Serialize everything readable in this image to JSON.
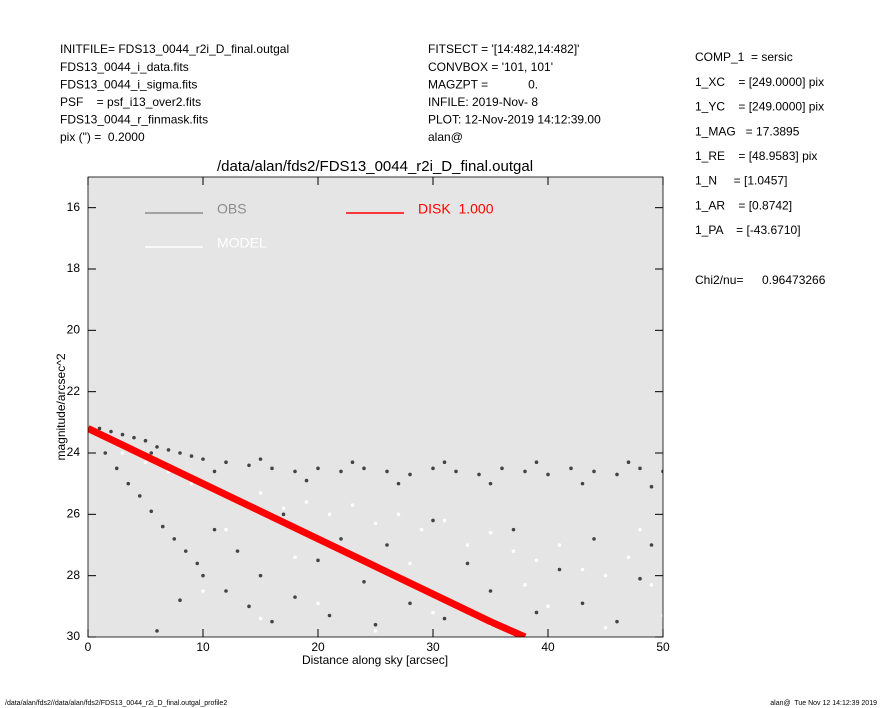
{
  "header": {
    "left": [
      "INITFILE= FDS13_0044_r2i_D_final.outgal",
      "FDS13_0044_i_data.fits",
      "FDS13_0044_i_sigma.fits",
      "PSF    = psf_i13_over2.fits",
      "FDS13_0044_r_finmask.fits",
      "pix (\") =  0.2000"
    ],
    "middle": [
      "FITSECT = '[14:482,14:482]'",
      "CONVBOX = '101, 101'",
      "MAGZPT =            0.",
      "INFILE: 2019-Nov- 8",
      "PLOT: 12-Nov-2019 14:12:39.00",
      "alan@"
    ],
    "right": [
      "COMP_1  = sersic",
      "1_XC    = [249.0000] pix",
      "1_YC    = [249.0000] pix",
      "1_MAG   = 17.3895",
      "1_RE    = [48.9583] pix",
      "1_N     = [1.0457]",
      "1_AR    = [0.8742]",
      "1_PA    = [-43.6710]"
    ],
    "chi2_label": "Chi2/nu=",
    "chi2_value": "0.96473266"
  },
  "footer": {
    "left": "/data/alan/fds2//data/alan/fds2/FDS13_0044_r2i_D_final.outgal_profile2",
    "right": "alan@  Tue Nov 12 14:12:39 2019"
  },
  "chart_data": {
    "type": "scatter",
    "title": "/data/alan/fds2/FDS13_0044_r2i_D_final.outgal",
    "x_label": "Distance along sky [arcsec]",
    "y_label": "magnitude/arcsec^2",
    "xlim": [
      0,
      50
    ],
    "ylim": [
      15,
      30
    ],
    "y_inverted": true,
    "xticks": [
      0,
      10,
      20,
      30,
      40,
      50
    ],
    "yticks": [
      16,
      18,
      20,
      22,
      24,
      26,
      28,
      30
    ],
    "background": "#e5e5e5",
    "series": [
      {
        "name": "OBS",
        "color": "#444444",
        "legend_color": "#8c8c8c",
        "x": [
          1,
          2,
          3,
          4,
          5,
          6,
          7,
          8,
          9,
          10,
          12,
          14,
          16,
          18,
          20,
          22,
          24,
          26,
          28,
          30,
          32,
          34,
          36,
          38,
          40,
          42,
          44,
          46,
          48,
          50,
          2.5,
          5.5,
          11,
          15,
          19,
          23,
          27,
          31,
          35,
          39,
          43,
          47,
          49,
          1.5,
          2.5,
          3.5,
          4.5,
          5.5,
          6.5,
          7.5,
          8.5,
          9.5,
          10,
          11,
          12,
          13,
          14,
          15,
          16,
          17,
          18,
          20,
          21,
          22,
          24,
          25,
          26,
          28,
          30,
          31,
          33,
          35,
          37,
          39,
          41,
          43,
          44,
          46,
          48,
          49,
          6,
          8
        ],
        "values": [
          23.2,
          23.3,
          23.4,
          23.5,
          23.6,
          23.8,
          23.9,
          24.0,
          24.1,
          24.2,
          24.3,
          24.4,
          24.5,
          24.6,
          24.5,
          24.6,
          24.5,
          24.6,
          24.7,
          24.5,
          24.6,
          24.7,
          24.5,
          24.6,
          24.7,
          24.5,
          24.6,
          24.7,
          24.5,
          24.6,
          23.6,
          24.0,
          24.6,
          24.2,
          24.9,
          24.3,
          25.0,
          24.3,
          25.0,
          24.3,
          25.0,
          24.3,
          25.1,
          24.0,
          24.5,
          25.0,
          25.4,
          25.9,
          26.4,
          26.8,
          27.2,
          27.6,
          28.0,
          26.5,
          28.5,
          27.2,
          29.0,
          28.0,
          29.5,
          26.0,
          28.7,
          27.5,
          29.3,
          26.8,
          28.2,
          29.6,
          27.0,
          28.9,
          26.2,
          29.4,
          27.6,
          28.5,
          26.5,
          29.2,
          27.8,
          28.9,
          26.8,
          29.5,
          28.1,
          27.0,
          29.8,
          28.8
        ]
      },
      {
        "name": "MODEL",
        "color": "#ffffff",
        "legend_color": "#ffffff",
        "x": [
          3,
          5,
          7,
          9,
          11,
          13,
          15,
          17,
          19,
          21,
          23,
          25,
          27,
          29,
          31,
          33,
          35,
          37,
          39,
          41,
          43,
          45,
          47,
          49,
          10,
          15,
          20,
          25,
          30,
          35,
          40,
          45,
          50,
          12,
          18,
          28,
          38,
          48
        ],
        "values": [
          24.0,
          24.3,
          24.6,
          25.0,
          25.2,
          25.5,
          25.3,
          25.8,
          25.6,
          26.0,
          25.7,
          26.3,
          26.0,
          26.5,
          26.2,
          27.0,
          26.6,
          27.2,
          27.5,
          27.0,
          27.8,
          28.0,
          27.4,
          28.3,
          28.5,
          29.4,
          28.9,
          29.8,
          29.2,
          29.6,
          29.0,
          29.7,
          29.3,
          26.5,
          27.4,
          27.6,
          28.3,
          26.5
        ]
      },
      {
        "name": "DISK  1.000",
        "color": "#ff0000",
        "legend_color": "#ff0000",
        "line": true,
        "x": [
          0,
          5,
          10,
          15,
          20,
          25,
          30,
          35,
          38
        ],
        "values": [
          23.2,
          24.1,
          25.0,
          25.9,
          26.8,
          27.7,
          28.6,
          29.5,
          30.0
        ]
      }
    ]
  }
}
